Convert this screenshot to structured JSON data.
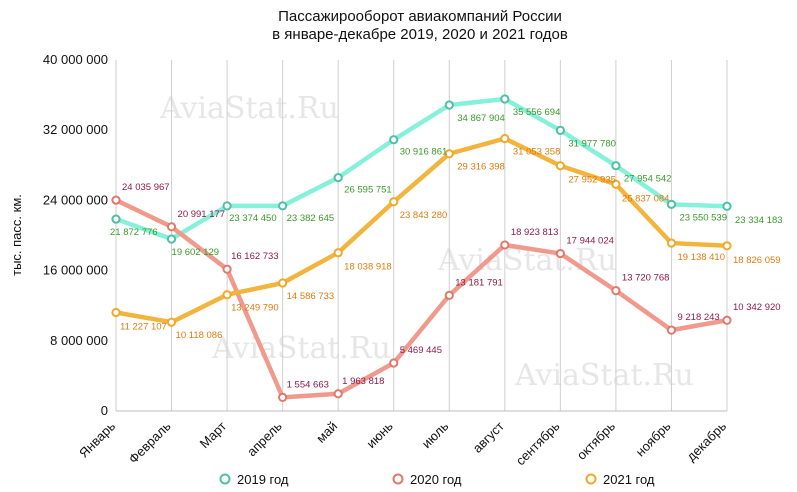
{
  "chart_data": {
    "type": "line",
    "title": "Пассажирооборот авиакомпаний России",
    "subtitle": "в январе-декабре 2019, 2020 и 2021 годов",
    "ylabel": "тыс. пасс. км.",
    "xlabel": "",
    "ylim": [
      0,
      40000000
    ],
    "yticks": [
      0,
      8000000,
      16000000,
      24000000,
      32000000,
      40000000
    ],
    "ytick_labels": [
      "0",
      "8 000 000",
      "16 000 000",
      "24 000 000",
      "32 000 000",
      "40 000 000"
    ],
    "categories": [
      "Январь",
      "Февраль",
      "Март",
      "апрель",
      "май",
      "июнь",
      "июль",
      "август",
      "сентябрь",
      "октябрь",
      "ноябрь",
      "декабрь"
    ],
    "grid": "vertical",
    "legend_position": "bottom",
    "watermark": "AviaStat.Ru",
    "series": [
      {
        "name": "2019 год",
        "color": "#86f0da",
        "marker_color": "#4fbfa6",
        "label_color": "#3a9a2a",
        "values": [
          21872776,
          19602129,
          23374450,
          23382645,
          26595751,
          30916861,
          34867904,
          35556694,
          31977780,
          27954542,
          23550539,
          23334183
        ],
        "labels": [
          "21 872 776",
          "19 602 129",
          "23 374 450",
          "23 382 645",
          "26 595 751",
          "30 916 861",
          "34 867 904",
          "35 556 694",
          "31 977 780",
          "27 954 542",
          "23 550 539",
          "23 334 183"
        ]
      },
      {
        "name": "2020 год",
        "color": "#ef9a8c",
        "marker_color": "#e2786a",
        "label_color": "#8c1a4a",
        "values": [
          24035967,
          20991177,
          16162733,
          1554663,
          1963818,
          5469445,
          13181791,
          18923813,
          17944024,
          13720768,
          9218243,
          10342920
        ],
        "labels": [
          "24 035 967",
          "20 991 177",
          "16 162 733",
          "1 554 663",
          "1 963 818",
          "5 469 445",
          "13 181 791",
          "18 923 813",
          "17 944 024",
          "13 720 768",
          "9 218 243",
          "10 342 920"
        ]
      },
      {
        "name": "2021 год",
        "color": "#f2b43c",
        "marker_color": "#f0a92a",
        "label_color": "#e07a10",
        "values": [
          11227107,
          10118086,
          13249790,
          14586733,
          18038918,
          23843280,
          29316398,
          31053358,
          27952935,
          25837084,
          19138410,
          18826059
        ],
        "labels": [
          "11 227 107",
          "10 118 086",
          "13 249 790",
          "14 586 733",
          "18 038 918",
          "23 843 280",
          "29 316 398",
          "31 053 358",
          "27 952 935",
          "25 837 084",
          "19 138 410",
          "18 826 059"
        ]
      }
    ]
  }
}
